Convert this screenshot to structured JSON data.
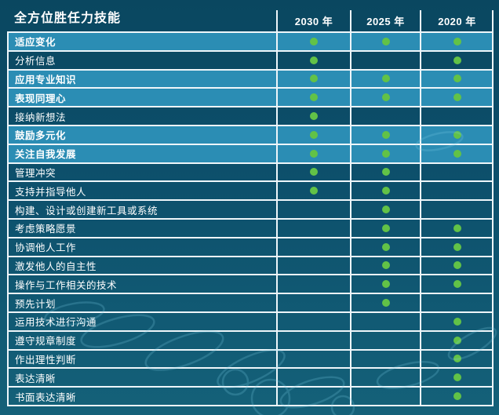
{
  "chart_data": {
    "type": "table",
    "title": "全方位胜任力技能",
    "columns": [
      "2030 年",
      "2025 年",
      "2020 年"
    ],
    "rows": [
      {
        "label": "适应变化",
        "highlight": true,
        "values": [
          1,
          1,
          1
        ]
      },
      {
        "label": "分析信息",
        "highlight": false,
        "values": [
          1,
          0,
          1
        ]
      },
      {
        "label": "应用专业知识",
        "highlight": true,
        "values": [
          1,
          1,
          1
        ]
      },
      {
        "label": "表现同理心",
        "highlight": true,
        "values": [
          1,
          1,
          1
        ]
      },
      {
        "label": "接纳新想法",
        "highlight": false,
        "values": [
          1,
          0,
          0
        ]
      },
      {
        "label": "鼓励多元化",
        "highlight": true,
        "values": [
          1,
          1,
          1
        ]
      },
      {
        "label": "关注自我发展",
        "highlight": true,
        "values": [
          1,
          1,
          1
        ]
      },
      {
        "label": "管理冲突",
        "highlight": false,
        "values": [
          1,
          1,
          0
        ]
      },
      {
        "label": "支持并指导他人",
        "highlight": false,
        "values": [
          1,
          1,
          0
        ]
      },
      {
        "label": "构建、设计或创建新工具或系统",
        "highlight": false,
        "values": [
          0,
          1,
          0
        ]
      },
      {
        "label": "考虑策略愿景",
        "highlight": false,
        "values": [
          0,
          1,
          1
        ]
      },
      {
        "label": "协调他人工作",
        "highlight": false,
        "values": [
          0,
          1,
          1
        ]
      },
      {
        "label": "激发他人的自主性",
        "highlight": false,
        "values": [
          0,
          1,
          1
        ]
      },
      {
        "label": "操作与工作相关的技术",
        "highlight": false,
        "values": [
          0,
          1,
          1
        ]
      },
      {
        "label": "预先计划",
        "highlight": false,
        "values": [
          0,
          1,
          0
        ]
      },
      {
        "label": "运用技术进行沟通",
        "highlight": false,
        "values": [
          0,
          0,
          1
        ]
      },
      {
        "label": "遵守规章制度",
        "highlight": false,
        "values": [
          0,
          0,
          1
        ]
      },
      {
        "label": "作出理性判断",
        "highlight": false,
        "values": [
          0,
          0,
          1
        ]
      },
      {
        "label": "表达清晰",
        "highlight": false,
        "values": [
          0,
          0,
          1
        ]
      },
      {
        "label": "书面表达清晰",
        "highlight": false,
        "values": [
          0,
          0,
          1
        ]
      }
    ],
    "marker": "green-dot",
    "layout": {
      "grid": true,
      "header_position": "top",
      "highlight_meaning": "skill present in all three years"
    }
  },
  "colors": {
    "bg_top": "#0a4760",
    "bg_bottom": "#146179",
    "row_highlight": "#2b8db4",
    "row_dark": "#0d5170",
    "dot_green": "#62c247",
    "line": "#eef6fa"
  }
}
